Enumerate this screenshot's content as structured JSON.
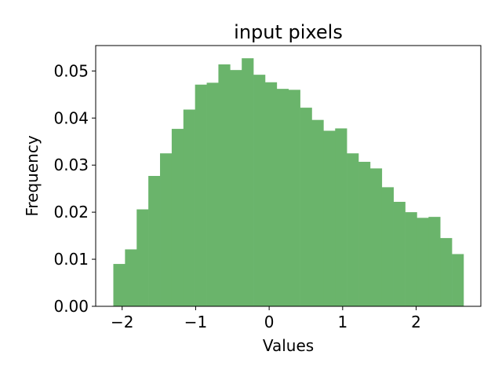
{
  "chart_data": {
    "type": "bar",
    "title": "input pixels",
    "xlabel": "Values",
    "ylabel": "Frequency",
    "xlim": [
      -2.36,
      2.88
    ],
    "ylim": [
      0.0,
      0.0554
    ],
    "xticks": [
      -2,
      -1,
      0,
      1,
      2
    ],
    "xtick_labels": [
      "−2",
      "−1",
      "0",
      "1",
      "2"
    ],
    "yticks": [
      0.0,
      0.01,
      0.02,
      0.03,
      0.04,
      0.05
    ],
    "ytick_labels": [
      "0.00",
      "0.01",
      "0.02",
      "0.03",
      "0.04",
      "0.05"
    ],
    "grid": false,
    "bar_color": "#6ab46b",
    "bins": {
      "start": -2.12,
      "end": 2.645,
      "values": [
        0.009,
        0.0121,
        0.0206,
        0.0277,
        0.0325,
        0.0377,
        0.0418,
        0.0471,
        0.0475,
        0.0514,
        0.0502,
        0.0527,
        0.0492,
        0.0476,
        0.0462,
        0.046,
        0.0422,
        0.0396,
        0.0373,
        0.0378,
        0.0325,
        0.0307,
        0.0293,
        0.0253,
        0.0222,
        0.02,
        0.0188,
        0.019,
        0.0145,
        0.0111
      ]
    }
  }
}
